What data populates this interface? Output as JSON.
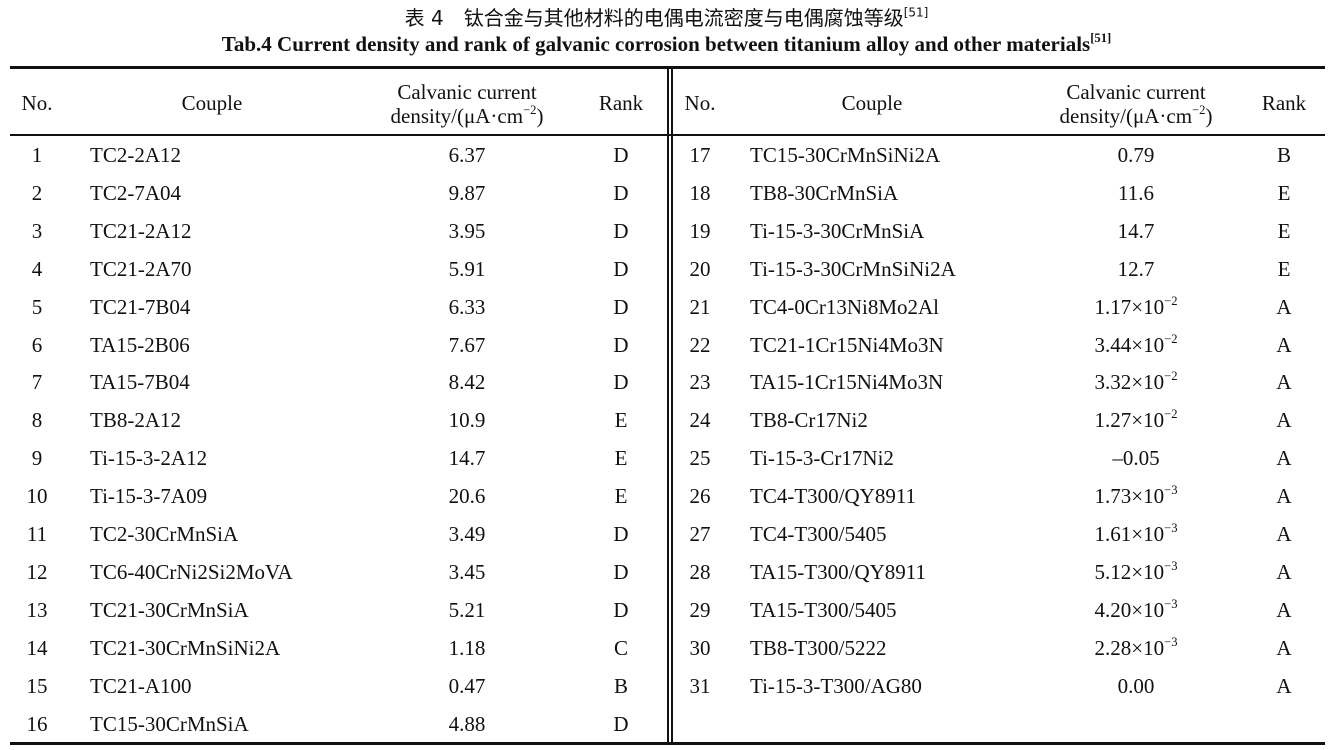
{
  "title_cn": "表 4　钛合金与其他材料的电偶电流密度与电偶腐蚀等级",
  "title_en": "Tab.4 Current density and rank of galvanic corrosion between titanium alloy and other materials",
  "citation": "[51]",
  "header": {
    "no": "No.",
    "couple": "Couple",
    "density_line1": "Calvanic current",
    "density_line2_pre": "density/(μA·cm",
    "density_line2_exp": "−2",
    "density_line2_post": ")",
    "rank": "Rank"
  },
  "rows": [
    {
      "no": "1",
      "couple": "TC2-2A12",
      "density": "6.37",
      "exp": "",
      "rank": "D"
    },
    {
      "no": "2",
      "couple": "TC2-7A04",
      "density": "9.87",
      "exp": "",
      "rank": "D"
    },
    {
      "no": "3",
      "couple": "TC21-2A12",
      "density": "3.95",
      "exp": "",
      "rank": "D"
    },
    {
      "no": "4",
      "couple": "TC21-2A70",
      "density": "5.91",
      "exp": "",
      "rank": "D"
    },
    {
      "no": "5",
      "couple": "TC21-7B04",
      "density": "6.33",
      "exp": "",
      "rank": "D"
    },
    {
      "no": "6",
      "couple": "TA15-2B06",
      "density": "7.67",
      "exp": "",
      "rank": "D"
    },
    {
      "no": "7",
      "couple": "TA15-7B04",
      "density": "8.42",
      "exp": "",
      "rank": "D"
    },
    {
      "no": "8",
      "couple": "TB8-2A12",
      "density": "10.9",
      "exp": "",
      "rank": "E"
    },
    {
      "no": "9",
      "couple": "Ti-15-3-2A12",
      "density": "14.7",
      "exp": "",
      "rank": "E"
    },
    {
      "no": "10",
      "couple": "Ti-15-3-7A09",
      "density": "20.6",
      "exp": "",
      "rank": "E"
    },
    {
      "no": "11",
      "couple": "TC2-30CrMnSiA",
      "density": "3.49",
      "exp": "",
      "rank": "D"
    },
    {
      "no": "12",
      "couple": "TC6-40CrNi2Si2MoVA",
      "density": "3.45",
      "exp": "",
      "rank": "D"
    },
    {
      "no": "13",
      "couple": "TC21-30CrMnSiA",
      "density": "5.21",
      "exp": "",
      "rank": "D"
    },
    {
      "no": "14",
      "couple": "TC21-30CrMnSiNi2A",
      "density": "1.18",
      "exp": "",
      "rank": "C"
    },
    {
      "no": "15",
      "couple": "TC21-A100",
      "density": "0.47",
      "exp": "",
      "rank": "B"
    },
    {
      "no": "16",
      "couple": "TC15-30CrMnSiA",
      "density": "4.88",
      "exp": "",
      "rank": "D"
    },
    {
      "no": "17",
      "couple": "TC15-30CrMnSiNi2A",
      "density": "0.79",
      "exp": "",
      "rank": "B"
    },
    {
      "no": "18",
      "couple": "TB8-30CrMnSiA",
      "density": "11.6",
      "exp": "",
      "rank": "E"
    },
    {
      "no": "19",
      "couple": "Ti-15-3-30CrMnSiA",
      "density": "14.7",
      "exp": "",
      "rank": "E"
    },
    {
      "no": "20",
      "couple": "Ti-15-3-30CrMnSiNi2A",
      "density": "12.7",
      "exp": "",
      "rank": "E"
    },
    {
      "no": "21",
      "couple": "TC4-0Cr13Ni8Mo2Al",
      "density": "1.17×10",
      "exp": "−2",
      "rank": "A"
    },
    {
      "no": "22",
      "couple": "TC21-1Cr15Ni4Mo3N",
      "density": "3.44×10",
      "exp": "−2",
      "rank": "A"
    },
    {
      "no": "23",
      "couple": "TA15-1Cr15Ni4Mo3N",
      "density": "3.32×10",
      "exp": "−2",
      "rank": "A"
    },
    {
      "no": "24",
      "couple": "TB8-Cr17Ni2",
      "density": "1.27×10",
      "exp": "−2",
      "rank": "A"
    },
    {
      "no": "25",
      "couple": "Ti-15-3-Cr17Ni2",
      "density": "–0.05",
      "exp": "",
      "rank": "A"
    },
    {
      "no": "26",
      "couple": "TC4-T300/QY8911",
      "density": "1.73×10",
      "exp": "−3",
      "rank": "A"
    },
    {
      "no": "27",
      "couple": "TC4-T300/5405",
      "density": "1.61×10",
      "exp": "−3",
      "rank": "A"
    },
    {
      "no": "28",
      "couple": "TA15-T300/QY8911",
      "density": "5.12×10",
      "exp": "−3",
      "rank": "A"
    },
    {
      "no": "29",
      "couple": "TA15-T300/5405",
      "density": "4.20×10",
      "exp": "−3",
      "rank": "A"
    },
    {
      "no": "30",
      "couple": "TB8-T300/5222",
      "density": "2.28×10",
      "exp": "−3",
      "rank": "A"
    },
    {
      "no": "31",
      "couple": "Ti-15-3-T300/AG80",
      "density": "0.00",
      "exp": "",
      "rank": "A"
    }
  ]
}
